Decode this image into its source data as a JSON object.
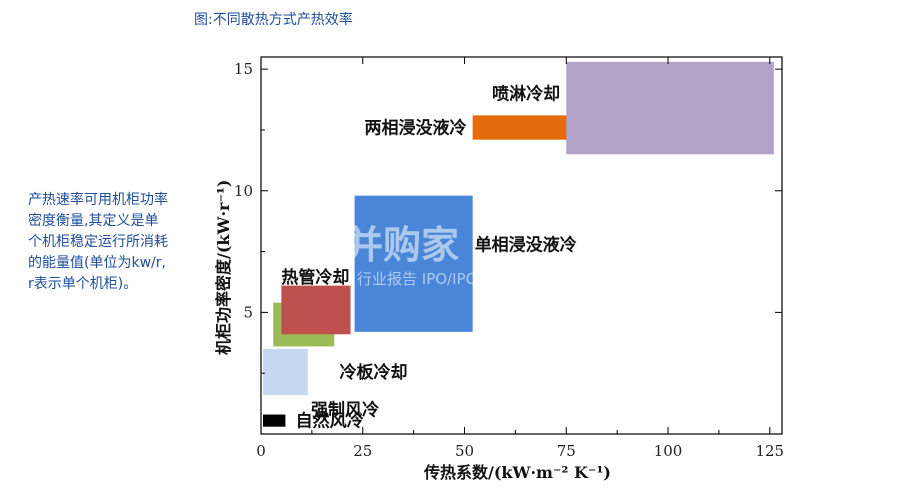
{
  "figure_title": "图:不同散热方式产热效率",
  "side_note": "产热速率可用机柜功率密度衡量,其定义是单个机柜稳定运行所消耗的能量值(单位为kw/r, r表示单个机柜)。",
  "watermark": {
    "brand": "并购家",
    "sub": "行业报告 IPO/IPOCN"
  },
  "colors": {
    "natural_air": "#000000",
    "forced_air": "#c6d8ef",
    "cold_plate": "#9bbb59",
    "heat_pipe": "#c0504d",
    "single_phase": "#4a86d8",
    "two_phase": "#e46c0a",
    "spray": "#b3a2c7"
  },
  "chart_data": {
    "type": "range-box",
    "xlabel": "传热系数/(kW·m⁻² K⁻¹)",
    "ylabel": "机柜功率密度/(kW·r⁻¹)",
    "xlim": [
      0,
      128
    ],
    "ylim": [
      0,
      15.5
    ],
    "xticks": [
      0,
      25,
      50,
      75,
      100,
      125
    ],
    "yticks": [
      5,
      10,
      15
    ],
    "grid": false,
    "series": [
      {
        "name": "自然风冷",
        "x_range": [
          0.5,
          6
        ],
        "y_range": [
          0.3,
          0.8
        ],
        "color_key": "natural_air"
      },
      {
        "name": "强制风冷",
        "x_range": [
          0.5,
          11.5
        ],
        "y_range": [
          1.6,
          3.5
        ],
        "color_key": "forced_air"
      },
      {
        "name": "冷板冷却",
        "x_range": [
          3,
          18
        ],
        "y_range": [
          3.6,
          5.4
        ],
        "color_key": "cold_plate"
      },
      {
        "name": "热管冷却",
        "x_range": [
          5,
          22
        ],
        "y_range": [
          4.1,
          6.1
        ],
        "color_key": "heat_pipe"
      },
      {
        "name": "单相浸没液冷",
        "x_range": [
          23,
          52
        ],
        "y_range": [
          4.2,
          9.8
        ],
        "color_key": "single_phase"
      },
      {
        "name": "两相浸没液冷",
        "x_range": [
          52,
          100
        ],
        "y_range": [
          12.1,
          13.1
        ],
        "color_key": "two_phase"
      },
      {
        "name": "喷淋冷却",
        "x_range": [
          75,
          126
        ],
        "y_range": [
          11.5,
          15.3
        ],
        "color_key": "spray"
      }
    ]
  }
}
